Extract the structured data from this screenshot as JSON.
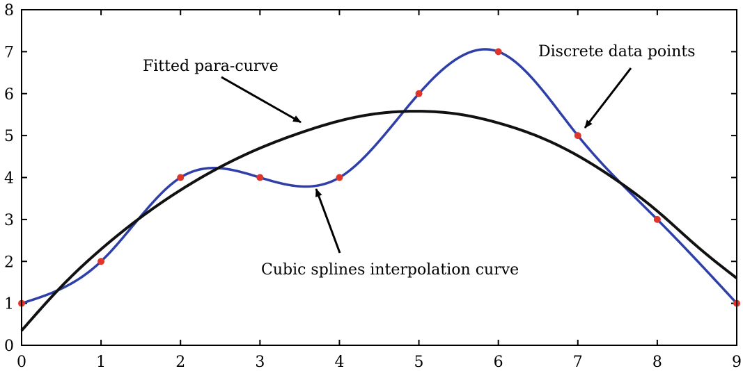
{
  "chart_data": {
    "type": "line",
    "xlim": [
      0,
      9
    ],
    "ylim": [
      0,
      8
    ],
    "x_ticks": [
      "0",
      "1",
      "2",
      "3",
      "4",
      "5",
      "6",
      "7",
      "8",
      "9"
    ],
    "y_ticks": [
      "0",
      "1",
      "2",
      "3",
      "4",
      "5",
      "6",
      "7",
      "8"
    ],
    "grid": false,
    "legend": "none",
    "series": [
      {
        "role": "discrete data points",
        "style": "markers",
        "color": "#e0352b",
        "x": [
          0,
          1,
          2,
          3,
          4,
          5,
          6,
          7,
          8,
          9
        ],
        "y": [
          1,
          2,
          4,
          4,
          4,
          6,
          7,
          5,
          3,
          1
        ]
      },
      {
        "role": "cubic spline interpolation",
        "style": "line",
        "color": "#2f3fa8",
        "x": [
          0,
          1,
          2,
          3,
          4,
          5,
          6,
          7,
          8,
          9
        ],
        "y": [
          1,
          2,
          4,
          4,
          4,
          6,
          7,
          5,
          3,
          1
        ]
      },
      {
        "role": "fitted parabola",
        "style": "line",
        "color": "#111111",
        "x": [
          0,
          0.5,
          1,
          1.5,
          2,
          2.5,
          3,
          3.5,
          4,
          4.5,
          5,
          5.5,
          6,
          6.5,
          7,
          7.5,
          8,
          8.5,
          9
        ],
        "y": [
          0.35,
          1.4,
          2.29,
          3.05,
          3.7,
          4.25,
          4.7,
          5.06,
          5.35,
          5.53,
          5.58,
          5.51,
          5.3,
          4.98,
          4.52,
          3.92,
          3.2,
          2.36,
          1.6
        ]
      }
    ],
    "annotations": [
      {
        "id": "para",
        "text": "Fitted para-curve",
        "points_to": [
          3.5,
          5.3
        ]
      },
      {
        "id": "data",
        "text": "Discrete data points",
        "points_to": [
          7.1,
          5.1
        ]
      },
      {
        "id": "spline",
        "text": "Cubic splines interpolation curve",
        "points_to": [
          3.7,
          3.7
        ]
      }
    ]
  }
}
